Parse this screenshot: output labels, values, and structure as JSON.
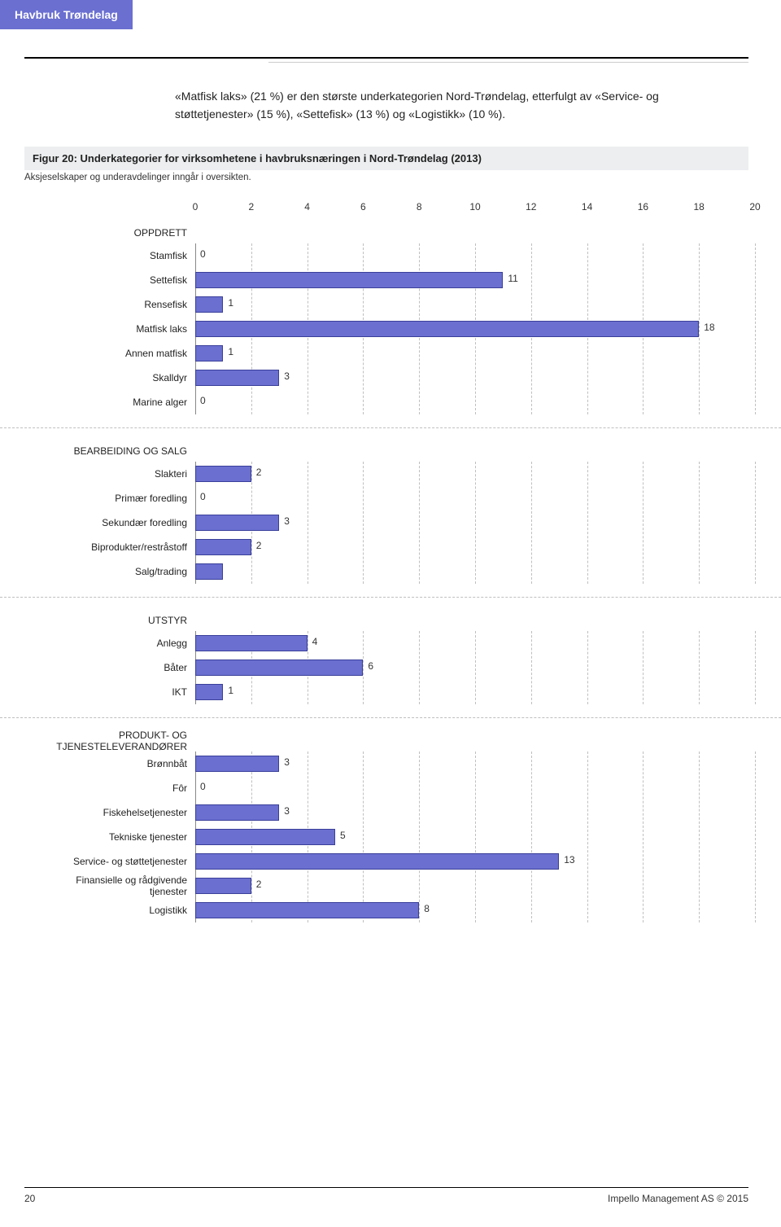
{
  "header": {
    "badge": "Havbruk Trøndelag"
  },
  "intro": "«Matfisk laks» (21 %) er den største underkategorien Nord-Trøndelag, etterfulgt av «Service- og støttetjenester» (15 %), «Settefisk» (13 %) og «Logistikk» (10 %).",
  "figure": {
    "caption": "Figur 20: Underkategorier for virksomhetene i havbruksnæringen i Nord-Trøndelag (2013)",
    "note": "Aksjeselskaper og underavdelinger inngår i oversikten."
  },
  "chart": {
    "type": "bar",
    "x_min": 0,
    "x_max": 20,
    "tick_step": 2,
    "bar_color": "#6a6fd0",
    "bar_border": "#3a3f9a",
    "grid_color": "#bfbfbf",
    "ticks": [
      0,
      2,
      4,
      6,
      8,
      10,
      12,
      14,
      16,
      18,
      20
    ],
    "groups": [
      {
        "label": "OPPDRETT",
        "rows": [
          {
            "label": "Stamfisk",
            "value": 0
          },
          {
            "label": "Settefisk",
            "value": 11
          },
          {
            "label": "Rensefisk",
            "value": 1
          },
          {
            "label": "Matfisk laks",
            "value": 18
          },
          {
            "label": "Annen matfisk",
            "value": 1
          },
          {
            "label": "Skalldyr",
            "value": 3
          },
          {
            "label": "Marine alger",
            "value": 0
          }
        ]
      },
      {
        "label": "BEARBEIDING OG SALG",
        "rows": [
          {
            "label": "Slakteri",
            "value": 2
          },
          {
            "label": "Primær foredling",
            "value": 0
          },
          {
            "label": "Sekundær foredling",
            "value": 3
          },
          {
            "label": "Biprodukter/restråstoff",
            "value": 2
          },
          {
            "label": "Salg/trading",
            "value": 1,
            "hide_value": true
          }
        ]
      },
      {
        "label": "UTSTYR",
        "rows": [
          {
            "label": "Anlegg",
            "value": 4
          },
          {
            "label": "Båter",
            "value": 6
          },
          {
            "label": "IKT",
            "value": 1
          }
        ]
      },
      {
        "label": "PRODUKT- OG TJENESTELEVERANDØRER",
        "rows": [
          {
            "label": "Brønnbåt",
            "value": 3
          },
          {
            "label": "Fôr",
            "value": 0
          },
          {
            "label": "Fiskehelsetjenester",
            "value": 3
          },
          {
            "label": "Tekniske tjenester",
            "value": 5
          },
          {
            "label": "Service- og støttetjenester",
            "value": 13
          },
          {
            "label": "Finansielle og rådgivende tjenester",
            "value": 2
          },
          {
            "label": "Logistikk",
            "value": 8
          }
        ]
      }
    ]
  },
  "footer": {
    "page": "20",
    "copyright": "Impello Management AS © 2015"
  }
}
